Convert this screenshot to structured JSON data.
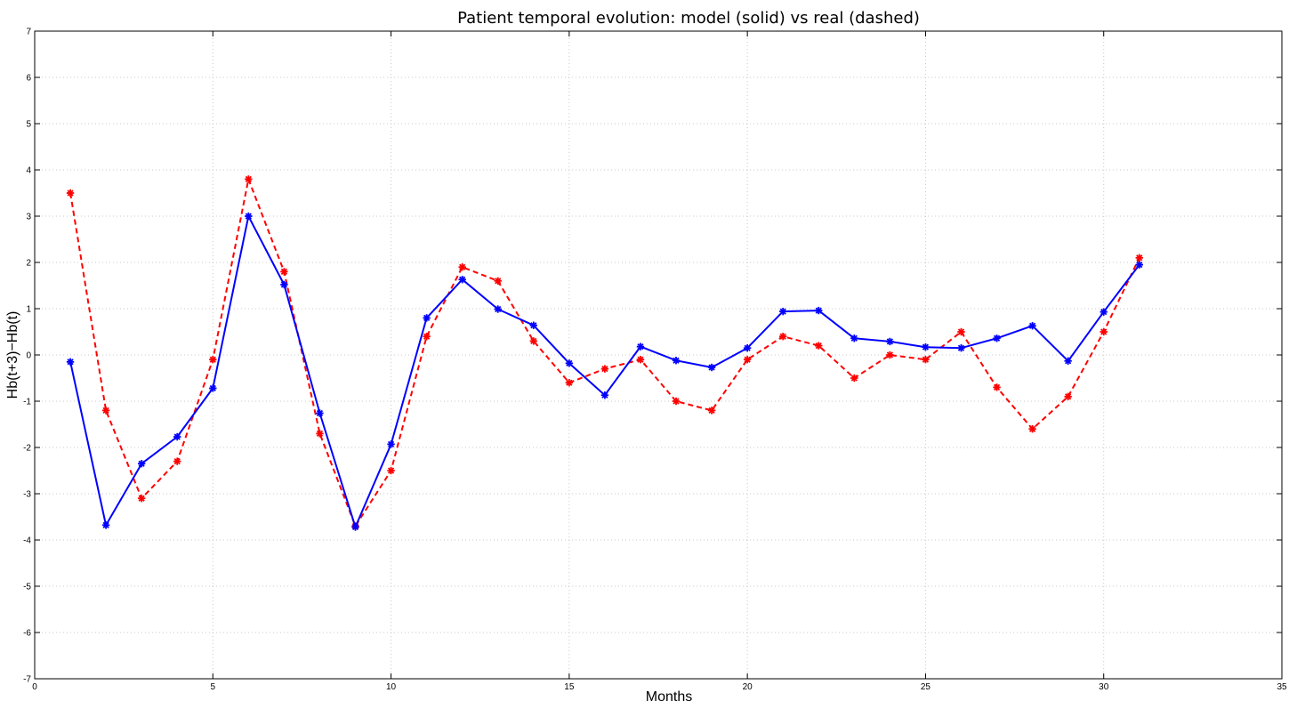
{
  "chart_data": {
    "type": "line",
    "title": "Patient temporal evolution: model (solid) vs real (dashed)",
    "xlabel": "Months",
    "ylabel": "Hb(t+3)−Hb(t)",
    "xlim": [
      0,
      35
    ],
    "ylim": [
      -7,
      7
    ],
    "xticks": [
      0,
      5,
      10,
      15,
      20,
      25,
      30,
      35
    ],
    "yticks": [
      -7,
      -6,
      -5,
      -4,
      -3,
      -2,
      -1,
      0,
      1,
      2,
      3,
      4,
      5,
      6,
      7
    ],
    "grid": true,
    "x": [
      1,
      2,
      3,
      4,
      5,
      6,
      7,
      8,
      9,
      10,
      11,
      12,
      13,
      14,
      15,
      16,
      17,
      18,
      19,
      20,
      21,
      22,
      23,
      24,
      25,
      26,
      27,
      28,
      29,
      30,
      31
    ],
    "series": [
      {
        "color": "#0000ff",
        "line_style": "solid",
        "marker": "asterisk",
        "values": [
          -0.15,
          -3.68,
          -2.35,
          -1.77,
          -0.72,
          3.0,
          1.52,
          -1.26,
          -3.72,
          -1.93,
          0.8,
          1.63,
          0.99,
          0.64,
          -0.18,
          -0.87,
          0.18,
          -0.12,
          -0.27,
          0.15,
          0.94,
          0.96,
          0.36,
          0.29,
          0.17,
          0.15,
          0.36,
          0.63,
          -0.13,
          0.93,
          1.95
        ]
      },
      {
        "color": "#ff0000",
        "line_style": "dashed",
        "marker": "asterisk",
        "values": [
          3.5,
          -1.2,
          -3.1,
          -2.3,
          -0.1,
          3.8,
          1.8,
          -1.7,
          -3.7,
          -2.5,
          0.4,
          1.9,
          1.6,
          0.3,
          -0.6,
          -0.3,
          -0.1,
          -1.0,
          -1.2,
          -0.1,
          0.4,
          0.2,
          -0.5,
          0.0,
          -0.1,
          0.5,
          -0.7,
          -1.6,
          -0.9,
          0.5,
          2.1
        ]
      }
    ]
  }
}
